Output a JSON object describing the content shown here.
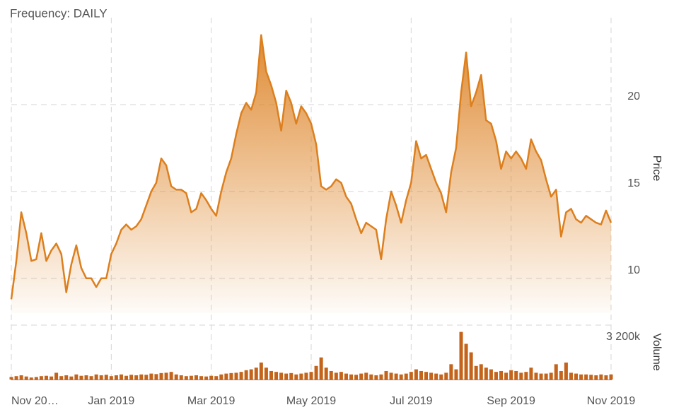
{
  "chart_data": [
    {
      "type": "line",
      "title": "Frequency: DAILY",
      "y_label": "Price",
      "color": "#dc7f1e",
      "categories": [
        "Nov 20…",
        null,
        null,
        null,
        null,
        null,
        null,
        null,
        null,
        null,
        null,
        null,
        null,
        null,
        null,
        null,
        null,
        null,
        null,
        null,
        "Jan 2019",
        null,
        null,
        null,
        null,
        null,
        null,
        null,
        null,
        null,
        null,
        null,
        null,
        null,
        null,
        null,
        null,
        null,
        null,
        null,
        "Mar 2019",
        null,
        null,
        null,
        null,
        null,
        null,
        null,
        null,
        null,
        null,
        null,
        null,
        null,
        null,
        null,
        null,
        null,
        null,
        null,
        "May 2019",
        null,
        null,
        null,
        null,
        null,
        null,
        null,
        null,
        null,
        null,
        null,
        null,
        null,
        null,
        null,
        null,
        null,
        null,
        null,
        "Jul 2019",
        null,
        null,
        null,
        null,
        null,
        null,
        null,
        null,
        null,
        null,
        null,
        null,
        null,
        null,
        null,
        null,
        null,
        null,
        null,
        "Sep 2019",
        null,
        null,
        null,
        null,
        null,
        null,
        null,
        null,
        null,
        null,
        null,
        null,
        null,
        null,
        null,
        null,
        null,
        null,
        null,
        "Nov 2019"
      ],
      "values": [
        8.8,
        11.0,
        13.8,
        12.6,
        11.0,
        11.1,
        12.6,
        11.0,
        11.6,
        12.0,
        11.4,
        9.2,
        10.8,
        11.9,
        10.6,
        10.0,
        10.0,
        9.5,
        10.0,
        10.0,
        11.4,
        12.0,
        12.8,
        13.1,
        12.8,
        13.0,
        13.4,
        14.2,
        15.0,
        15.5,
        16.9,
        16.5,
        15.3,
        15.1,
        15.1,
        14.9,
        13.8,
        14.0,
        14.9,
        14.5,
        14.0,
        13.6,
        15.0,
        16.1,
        16.9,
        18.3,
        19.5,
        20.1,
        19.7,
        20.7,
        24.0,
        21.9,
        21.1,
        20.1,
        18.5,
        20.8,
        20.1,
        18.9,
        19.9,
        19.5,
        18.9,
        17.7,
        15.3,
        15.1,
        15.3,
        15.7,
        15.5,
        14.7,
        14.3,
        13.4,
        12.6,
        13.2,
        13.0,
        12.8,
        11.1,
        13.4,
        15.0,
        14.2,
        13.2,
        14.5,
        15.5,
        17.9,
        16.9,
        17.1,
        16.3,
        15.5,
        14.9,
        13.8,
        16.1,
        17.5,
        20.7,
        23.0,
        19.9,
        20.7,
        21.7,
        19.1,
        18.9,
        17.9,
        16.3,
        17.3,
        16.9,
        17.3,
        16.9,
        16.3,
        18.0,
        17.3,
        16.8,
        15.7,
        14.7,
        15.1,
        12.4,
        13.8,
        14.0,
        13.4,
        13.2,
        13.6,
        13.4,
        13.2,
        13.1,
        13.9,
        13.2
      ],
      "ylim": [
        8,
        25
      ],
      "yticks": [
        10,
        15,
        20
      ],
      "grid": true
    },
    {
      "type": "bar",
      "y_label": "Volume",
      "color": "#c4631a",
      "values": [
        150000,
        200000,
        250000,
        180000,
        120000,
        150000,
        200000,
        220000,
        180000,
        400000,
        200000,
        250000,
        180000,
        300000,
        220000,
        250000,
        200000,
        300000,
        250000,
        280000,
        200000,
        250000,
        300000,
        220000,
        280000,
        250000,
        300000,
        280000,
        350000,
        320000,
        380000,
        400000,
        450000,
        300000,
        250000,
        200000,
        220000,
        250000,
        200000,
        180000,
        220000,
        200000,
        300000,
        350000,
        380000,
        400000,
        450000,
        550000,
        600000,
        700000,
        1000000,
        700000,
        500000,
        450000,
        400000,
        350000,
        380000,
        300000,
        350000,
        400000,
        450000,
        800000,
        1300000,
        700000,
        500000,
        400000,
        450000,
        350000,
        300000,
        280000,
        350000,
        400000,
        300000,
        250000,
        300000,
        500000,
        400000,
        350000,
        300000,
        350000,
        450000,
        600000,
        500000,
        450000,
        400000,
        350000,
        300000,
        400000,
        900000,
        600000,
        2800000,
        2100000,
        1600000,
        800000,
        900000,
        700000,
        600000,
        450000,
        500000,
        400000,
        550000,
        500000,
        400000,
        450000,
        700000,
        400000,
        350000,
        350000,
        400000,
        900000,
        500000,
        1000000,
        400000,
        350000,
        300000,
        300000,
        280000,
        250000,
        300000,
        250000,
        300000
      ],
      "ylim": [
        0,
        3200000
      ],
      "yticks": [
        {
          "value": 3200000,
          "label": "3 200k"
        }
      ],
      "grid": true
    }
  ]
}
